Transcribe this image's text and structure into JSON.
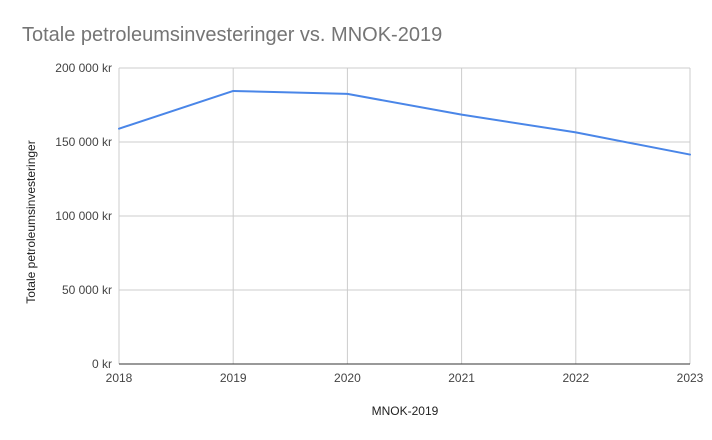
{
  "chart_data": {
    "type": "line",
    "title": "Totale petroleumsinvesteringer vs. MNOK-2019",
    "xlabel": "MNOK-2019",
    "ylabel": "Totale petroleumsinvesteringer",
    "x": [
      2018,
      2019,
      2020,
      2021,
      2022,
      2023
    ],
    "x_tick_labels": [
      "2018",
      "2019",
      "2020",
      "2021",
      "2022",
      "2023"
    ],
    "series": [
      {
        "values": [
          159000,
          184500,
          182500,
          168500,
          156500,
          141500
        ],
        "color": "#4a86e8"
      }
    ],
    "ylim": [
      0,
      200000
    ],
    "y_ticks": [
      0,
      50000,
      100000,
      150000,
      200000
    ],
    "y_tick_labels": [
      "0 kr",
      "50 000 kr",
      "100 000 kr",
      "150 000 kr",
      "200 000 kr"
    ],
    "grid": true,
    "legend": "none"
  }
}
